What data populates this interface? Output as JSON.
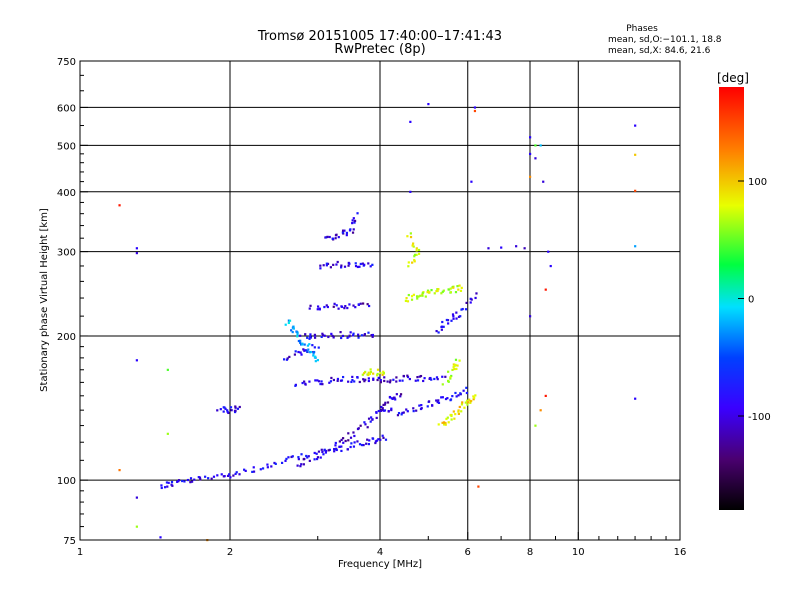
{
  "chart_data": {
    "type": "scatter",
    "title": "Tromsø 20151005 17:40:00–17:41:43",
    "subtitle": "RwPretec (8p)",
    "stats_header": "Phases",
    "stats_o": "mean, sd,O:−101.1, 18.8",
    "stats_x": "mean, sd,X:  84.6, 21.6",
    "xlabel": "Frequency [MHz]",
    "ylabel": "Stationary phase Virtual Height [km]",
    "xscale": "log",
    "yscale": "log",
    "xlim": [
      1,
      16
    ],
    "ylim": [
      75,
      750
    ],
    "grid": true,
    "xticks": [
      1,
      2,
      4,
      6,
      8,
      10,
      16
    ],
    "yticks": [
      75,
      100,
      200,
      300,
      400,
      500,
      600,
      750
    ],
    "grid_x": [
      2,
      4,
      6,
      8,
      10
    ],
    "grid_y": [
      100,
      200,
      300,
      400,
      500,
      600
    ],
    "colorbar": {
      "label": "[deg]",
      "range": [
        -180,
        180
      ],
      "ticks": [
        100,
        0,
        -100
      ]
    },
    "traces": [
      {
        "phase": -100,
        "points": [
          [
            1.45,
            97
          ],
          [
            1.55,
            99
          ],
          [
            1.7,
            100
          ],
          [
            1.9,
            102
          ],
          [
            2.1,
            104
          ],
          [
            2.4,
            107
          ],
          [
            2.7,
            111
          ],
          [
            3.0,
            114
          ],
          [
            3.3,
            116
          ],
          [
            3.6,
            119
          ],
          [
            3.9,
            121
          ],
          [
            4.1,
            123
          ]
        ]
      },
      {
        "phase": -110,
        "points": [
          [
            2.7,
            107
          ],
          [
            3.0,
            112
          ],
          [
            3.3,
            118
          ],
          [
            3.5,
            124
          ],
          [
            3.8,
            132
          ],
          [
            4.0,
            140
          ],
          [
            4.2,
            148
          ],
          [
            4.4,
            152
          ]
        ]
      },
      {
        "phase": -100,
        "points": [
          [
            4.0,
            140
          ],
          [
            4.4,
            138
          ],
          [
            4.8,
            142
          ],
          [
            5.2,
            146
          ],
          [
            5.6,
            150
          ],
          [
            6.0,
            155
          ]
        ]
      },
      {
        "phase": -105,
        "points": [
          [
            2.7,
            158
          ],
          [
            3.0,
            160
          ],
          [
            3.3,
            162
          ],
          [
            3.6,
            162
          ],
          [
            3.9,
            162
          ],
          [
            4.2,
            162
          ],
          [
            4.6,
            163
          ],
          [
            5.0,
            163
          ],
          [
            5.4,
            163
          ]
        ]
      },
      {
        "phase": -100,
        "points": [
          [
            2.8,
            200
          ],
          [
            3.0,
            200
          ],
          [
            3.3,
            201
          ],
          [
            3.6,
            201
          ],
          [
            3.9,
            202
          ]
        ]
      },
      {
        "phase": -110,
        "points": [
          [
            2.9,
            228
          ],
          [
            3.2,
            230
          ],
          [
            3.5,
            232
          ],
          [
            3.8,
            232
          ]
        ]
      },
      {
        "phase": -100,
        "points": [
          [
            3.0,
            280
          ],
          [
            3.3,
            282
          ],
          [
            3.6,
            282
          ],
          [
            3.9,
            283
          ]
        ]
      },
      {
        "phase": -105,
        "points": [
          [
            3.1,
            320
          ],
          [
            3.3,
            325
          ],
          [
            3.5,
            330
          ],
          [
            3.6,
            360
          ]
        ]
      },
      {
        "phase": -100,
        "points": [
          [
            1.9,
            140
          ],
          [
            2.0,
            140
          ],
          [
            2.1,
            141
          ]
        ]
      },
      {
        "phase": -100,
        "points": [
          [
            2.6,
            180
          ],
          [
            2.8,
            185
          ],
          [
            3.0,
            190
          ]
        ]
      },
      {
        "phase": -30,
        "points": [
          [
            2.6,
            215
          ],
          [
            2.7,
            205
          ],
          [
            2.8,
            195
          ],
          [
            2.9,
            185
          ],
          [
            3.0,
            178
          ]
        ]
      },
      {
        "phase": 80,
        "points": [
          [
            3.7,
            168
          ],
          [
            3.9,
            168
          ],
          [
            4.1,
            168
          ]
        ]
      },
      {
        "phase": 70,
        "points": [
          [
            4.5,
            238
          ],
          [
            4.8,
            243
          ],
          [
            5.0,
            246
          ],
          [
            5.3,
            248
          ],
          [
            5.6,
            250
          ],
          [
            5.8,
            252
          ]
        ]
      },
      {
        "phase": 90,
        "points": [
          [
            5.3,
            130
          ],
          [
            5.5,
            135
          ],
          [
            5.8,
            140
          ],
          [
            6.0,
            146
          ],
          [
            6.2,
            150
          ]
        ]
      },
      {
        "phase": 70,
        "points": [
          [
            5.4,
            160
          ],
          [
            5.6,
            170
          ],
          [
            5.8,
            180
          ]
        ]
      },
      {
        "phase": 80,
        "points": [
          [
            4.6,
            280
          ],
          [
            4.8,
            300
          ],
          [
            4.5,
            330
          ]
        ]
      },
      {
        "phase": -100,
        "points": [
          [
            5.2,
            205
          ],
          [
            5.5,
            215
          ],
          [
            5.8,
            225
          ],
          [
            6.3,
            245
          ]
        ]
      }
    ],
    "isolated_points": [
      [
        1.2,
        375,
        170
      ],
      [
        1.3,
        305,
        -100
      ],
      [
        1.3,
        298,
        -110
      ],
      [
        1.3,
        178,
        -100
      ],
      [
        1.3,
        92,
        -110
      ],
      [
        1.3,
        80,
        60
      ],
      [
        1.5,
        170,
        40
      ],
      [
        1.5,
        125,
        60
      ],
      [
        1.2,
        105,
        130
      ],
      [
        1.45,
        76,
        -100
      ],
      [
        1.8,
        75,
        120
      ],
      [
        4.6,
        400,
        -100
      ],
      [
        4.6,
        560,
        -100
      ],
      [
        5.0,
        610,
        -100
      ],
      [
        6.2,
        600,
        -100
      ],
      [
        6.2,
        590,
        150
      ],
      [
        6.1,
        420,
        -100
      ],
      [
        8.0,
        520,
        -100
      ],
      [
        8.0,
        480,
        -100
      ],
      [
        8.2,
        470,
        -110
      ],
      [
        8.2,
        500,
        40
      ],
      [
        8.0,
        430,
        120
      ],
      [
        8.5,
        420,
        -110
      ],
      [
        8.4,
        500,
        -20
      ],
      [
        8.8,
        280,
        -100
      ],
      [
        8.7,
        300,
        -100
      ],
      [
        8.6,
        250,
        170
      ],
      [
        8.0,
        220,
        -110
      ],
      [
        8.6,
        150,
        170
      ],
      [
        8.4,
        140,
        120
      ],
      [
        8.2,
        130,
        60
      ],
      [
        13.0,
        550,
        -100
      ],
      [
        13.0,
        478,
        100
      ],
      [
        13.0,
        402,
        150
      ],
      [
        13.0,
        308,
        -30
      ],
      [
        13.0,
        148,
        -100
      ],
      [
        6.3,
        97,
        150
      ],
      [
        6.6,
        305,
        -110
      ],
      [
        7.0,
        306,
        -100
      ],
      [
        7.5,
        308,
        -110
      ],
      [
        7.8,
        305,
        -120
      ]
    ]
  }
}
